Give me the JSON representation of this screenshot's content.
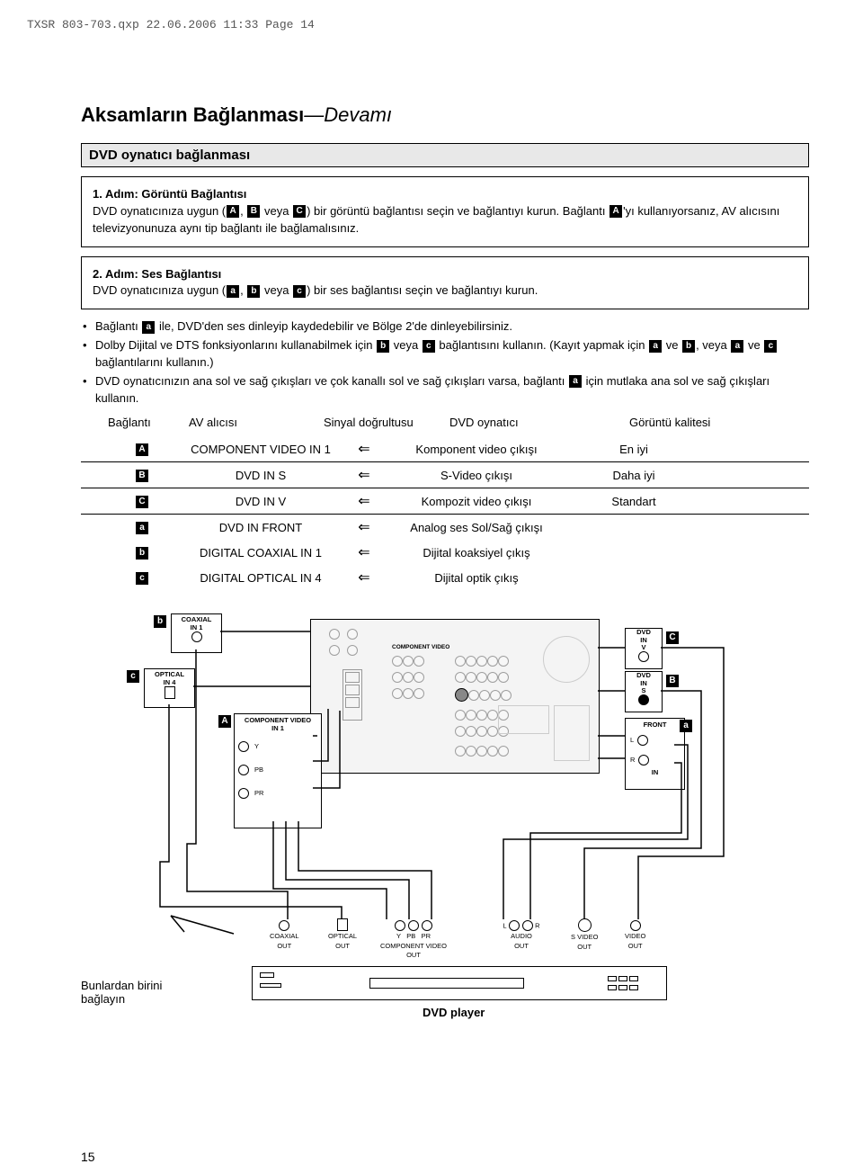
{
  "header_line": "TXSR 803-703.qxp  22.06.2006  11:33  Page 14",
  "title_main": "Aksamların Bağlanması",
  "title_continued": "—Devamı",
  "section_bar": "DVD oynatıcı bağlanması",
  "step1": {
    "title": "1. Adım: Görüntü Bağlantısı",
    "line1a": "DVD oynatıcınıza uygun (",
    "line1b": ", ",
    "line1c": " veya ",
    "line1d": ") bir görüntü bağlantısı seçin ve bağlantıyı kurun. Bağlantı ",
    "line1e": "'yı kullanıyorsanız, AV alıcısını televizyonunuza aynı tip bağlantı ile bağlamalısınız."
  },
  "step2": {
    "title": "2. Adım: Ses Bağlantısı",
    "line1a": "DVD oynatıcınıza uygun (",
    "line1b": ", ",
    "line1c": " veya ",
    "line1d": ") bir ses bağlantısı seçin ve bağlantıyı kurun."
  },
  "bullets": {
    "b1a": "Bağlantı ",
    "b1b": " ile, DVD'den ses dinleyip kaydedebilir ve Bölge 2'de dinleyebilirsiniz.",
    "b2a": "Dolby Dijital ve DTS fonksiyonlarını kullanabilmek için ",
    "b2b": " veya ",
    "b2c": " bağlantısını kullanın. (Kayıt yapmak için ",
    "b2d": " ve ",
    "b2e": ", veya ",
    "b2f": " ve ",
    "b2g": " bağlantılarını kullanın.)",
    "b3a": "DVD oynatıcınızın ana sol ve sağ çıkışları ve çok kanallı sol ve sağ çıkışları varsa, bağlantı ",
    "b3b": " için mutlaka ana sol ve sağ çıkışları kullanın."
  },
  "table_headers": {
    "h1": "Bağlantı",
    "h2": "AV alıcısı",
    "h3": "Sinyal doğrultusu",
    "h4": "DVD oynatıcı",
    "h5": "Görüntü kalitesi"
  },
  "glyphs": {
    "A": "A",
    "B": "B",
    "C": "C",
    "a": "a",
    "b": "b",
    "c": "c"
  },
  "table_rows": [
    {
      "g": "A",
      "col2": "COMPONENT VIDEO IN 1",
      "col4": "Komponent video çıkışı",
      "col5": "En iyi"
    },
    {
      "g": "B",
      "col2": "DVD IN S",
      "col4": "S-Video çıkışı",
      "col5": "Daha iyi"
    },
    {
      "g": "C",
      "col2": "DVD IN V",
      "col4": "Kompozit video çıkışı",
      "col5": "Standart"
    },
    {
      "g": "a",
      "col2": "DVD IN FRONT",
      "col4": "Analog ses Sol/Sağ çıkışı",
      "col5": ""
    },
    {
      "g": "b",
      "col2": "DIGITAL COAXIAL IN 1",
      "col4": "Dijital koaksiyel çıkış",
      "col5": ""
    },
    {
      "g": "c",
      "col2": "DIGITAL OPTICAL IN 4",
      "col4": "Dijital optik çıkış",
      "col5": ""
    }
  ],
  "arrow": "⇐",
  "diagram_labels": {
    "coaxial_in1": "COAXIAL\nIN 1",
    "optical_in4": "OPTICAL\nIN 4",
    "component_in1": "COMPONENT VIDEO\nIN 1",
    "Y": "Y",
    "PB": "PB",
    "PR": "PR",
    "dvd_in_v": "DVD\nIN\nV",
    "dvd_in_s": "DVD\nIN\nS",
    "front": "FRONT",
    "L": "L",
    "R": "R",
    "IN": "IN",
    "coaxial_out": "COAXIAL\nOUT",
    "optical_out": "OPTICAL\nOUT",
    "comp_video_out": "COMPONENT VIDEO OUT",
    "audio_out": "AUDIO\nOUT",
    "svideo_out": "S VIDEO\nOUT",
    "video_out": "VIDEO\nOUT",
    "footnote": "Bunlardan birini bağlayın",
    "dvd_player": "DVD player",
    "component_video_small": "COMPONENT VIDEO"
  },
  "page_number": "15"
}
